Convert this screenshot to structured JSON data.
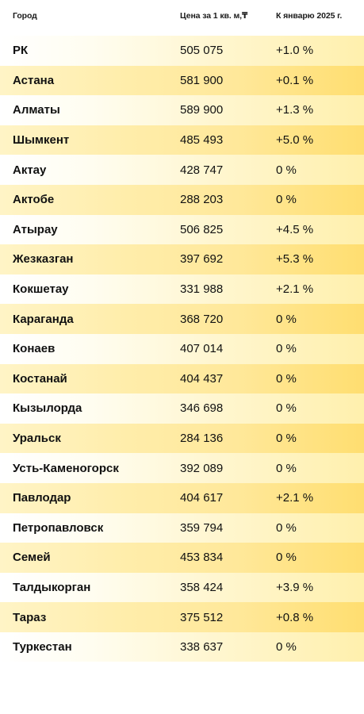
{
  "table": {
    "headers": {
      "city": "Город",
      "price": "Цена за 1 кв. м,₸",
      "change": "К январю 2025 г."
    },
    "rows": [
      {
        "city": "РК",
        "price": "505 075",
        "change": "+1.0 %"
      },
      {
        "city": "Астана",
        "price": "581 900",
        "change": "+0.1 %"
      },
      {
        "city": "Алматы",
        "price": "589 900",
        "change": "+1.3 %"
      },
      {
        "city": "Шымкент",
        "price": "485 493",
        "change": "+5.0 %"
      },
      {
        "city": "Актау",
        "price": "428 747",
        "change": "0 %"
      },
      {
        "city": "Актобе",
        "price": "288 203",
        "change": "0 %"
      },
      {
        "city": "Атырау",
        "price": "506 825",
        "change": "+4.5 %"
      },
      {
        "city": "Жезказган",
        "price": "397 692",
        "change": "+5.3 %"
      },
      {
        "city": "Кокшетау",
        "price": "331 988",
        "change": "+2.1 %"
      },
      {
        "city": "Караганда",
        "price": "368 720",
        "change": "0 %"
      },
      {
        "city": "Конаев",
        "price": "407 014",
        "change": "0 %"
      },
      {
        "city": "Костанай",
        "price": "404 437",
        "change": "0 %"
      },
      {
        "city": "Кызылорда",
        "price": "346 698",
        "change": "0 %"
      },
      {
        "city": "Уральск",
        "price": "284 136",
        "change": "0 %"
      },
      {
        "city": "Усть-Каменогорск",
        "price": "392 089",
        "change": "0 %"
      },
      {
        "city": "Павлодар",
        "price": "404 617",
        "change": "+2.1 %"
      },
      {
        "city": "Петропавловск",
        "price": "359 794",
        "change": "0 %"
      },
      {
        "city": "Семей",
        "price": "453 834",
        "change": "0 %"
      },
      {
        "city": "Талдыкорган",
        "price": "358 424",
        "change": "+3.9 %"
      },
      {
        "city": "Тараз",
        "price": "375 512",
        "change": "+0.8 %"
      },
      {
        "city": "Туркестан",
        "price": "338 637",
        "change": "0 %"
      }
    ]
  }
}
